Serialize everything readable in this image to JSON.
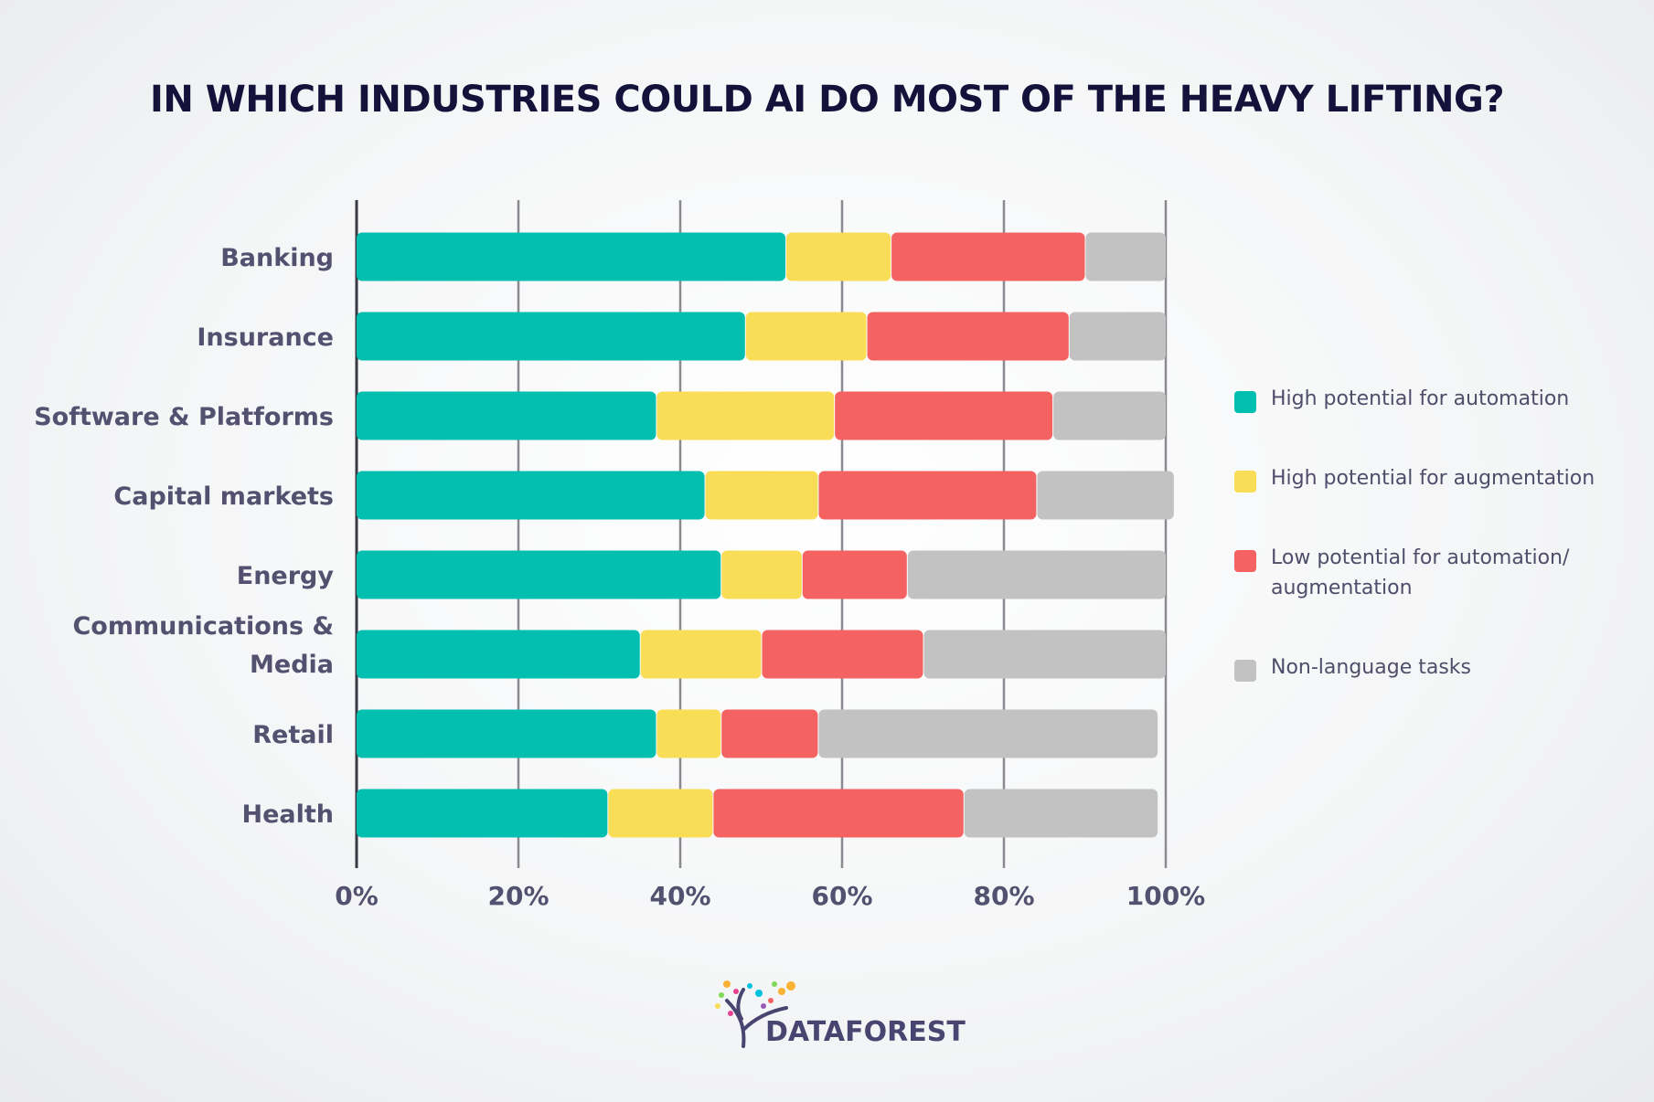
{
  "title": "IN WHICH INDUSTRIES COULD AI DO MOST OF THE HEAVY LIFTING?",
  "chart_data": {
    "type": "bar",
    "orientation": "horizontal",
    "stacked": true,
    "title": "IN WHICH INDUSTRIES COULD AI DO MOST OF THE HEAVY LIFTING?",
    "categories": [
      "Banking",
      "Insurance",
      "Software & Platforms",
      "Capital markets",
      "Energy",
      "Communications & Media",
      "Retail",
      "Health"
    ],
    "series": [
      {
        "name": "High potential for automation",
        "color": "#03bfb0",
        "values": [
          53,
          48,
          37,
          43,
          45,
          35,
          37,
          31
        ]
      },
      {
        "name": "High potential for augmentation",
        "color": "#f9dd57",
        "values": [
          13,
          15,
          22,
          14,
          10,
          15,
          8,
          13
        ]
      },
      {
        "name": "Low potential for automation/ augmentation",
        "color": "#f56262",
        "values": [
          24,
          25,
          27,
          27,
          13,
          20,
          12,
          31
        ]
      },
      {
        "name": "Non-language tasks",
        "color": "#c2c2c2",
        "values": [
          10,
          12,
          14,
          17,
          32,
          30,
          42,
          24
        ]
      }
    ],
    "xlim": [
      0,
      100
    ],
    "xticks": [
      "0%",
      "20%",
      "40%",
      "60%",
      "80%",
      "100%"
    ],
    "grid": "vertical",
    "legend": "right"
  },
  "legend": {
    "items": [
      {
        "label": "High potential for automation",
        "color": "#03bfb0"
      },
      {
        "label": "High potential for augmentation",
        "color": "#f9dd57"
      },
      {
        "label": "Low potential for automation/ augmentation",
        "color": "#f56262"
      },
      {
        "label": "Non-language tasks",
        "color": "#c2c2c2"
      }
    ]
  },
  "logo": {
    "text": "DATAFOREST"
  }
}
